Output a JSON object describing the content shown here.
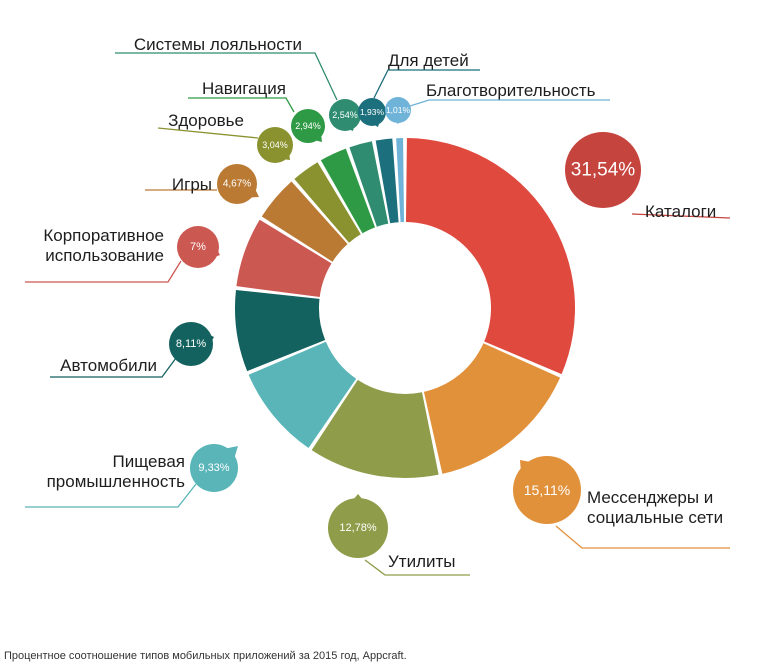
{
  "caption": "Процентное соотношение типов мобильных приложений за 2015 год, Appcraft.",
  "chart_data": {
    "type": "pie",
    "donut": true,
    "slices": [
      {
        "label": [
          "Каталоги"
        ],
        "value": 31.54,
        "display": "31,54%",
        "color": "#e0493e",
        "bubble_color": "#c6443e"
      },
      {
        "label": [
          "Мессенджеры и",
          "социальные сети"
        ],
        "value": 15.11,
        "display": "15,11%",
        "color": "#e2913b",
        "bubble_color": "#e2913b"
      },
      {
        "label": [
          "Утилиты"
        ],
        "value": 12.78,
        "display": "12,78%",
        "color": "#8f9c49",
        "bubble_color": "#8f9c49"
      },
      {
        "label": [
          "Пищевая",
          "промышленность"
        ],
        "value": 9.33,
        "display": "9,33%",
        "color": "#5ab5b8",
        "bubble_color": "#5ab5b8"
      },
      {
        "label": [
          "Автомобили"
        ],
        "value": 8.11,
        "display": "8,11%",
        "color": "#13625f",
        "bubble_color": "#13625f"
      },
      {
        "label": [
          "Корпоративное",
          "использование"
        ],
        "value": 7,
        "display": "7%",
        "color": "#cc5852",
        "bubble_color": "#cc5852"
      },
      {
        "label": [
          "Игры"
        ],
        "value": 4.67,
        "display": "4,67%",
        "color": "#ba7a34",
        "bubble_color": "#ba7a34"
      },
      {
        "label": [
          "Здоровье"
        ],
        "value": 3.04,
        "display": "3,04%",
        "color": "#8a9230",
        "bubble_color": "#8a9230"
      },
      {
        "label": [
          "Навигация"
        ],
        "value": 2.94,
        "display": "2,94%",
        "color": "#2f9a45",
        "bubble_color": "#2f9a45"
      },
      {
        "label": [
          "Системы лояльности"
        ],
        "value": 2.54,
        "display": "2,54%",
        "color": "#2f8c70",
        "bubble_color": "#2f8c70"
      },
      {
        "label": [
          "Для детей"
        ],
        "value": 1.93,
        "display": "1,93%",
        "color": "#1c6f7c",
        "bubble_color": "#1c6f7c"
      },
      {
        "label": [
          "Благотворительность"
        ],
        "value": 1.01,
        "display": "1,01%",
        "color": "#6fb3d8",
        "bubble_color": "#6fb3d8"
      }
    ]
  }
}
